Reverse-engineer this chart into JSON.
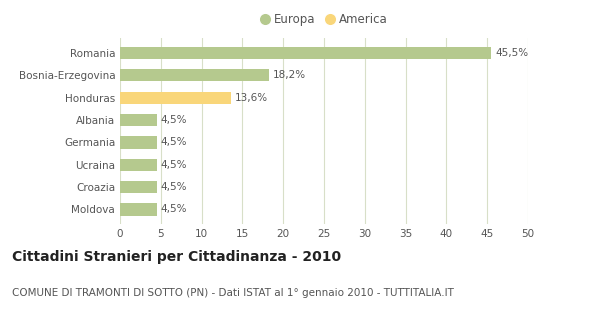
{
  "categories": [
    "Romania",
    "Bosnia-Erzegovina",
    "Honduras",
    "Albania",
    "Germania",
    "Ucraina",
    "Croazia",
    "Moldova"
  ],
  "values": [
    45.5,
    18.2,
    13.6,
    4.5,
    4.5,
    4.5,
    4.5,
    4.5
  ],
  "labels": [
    "45,5%",
    "18,2%",
    "13,6%",
    "4,5%",
    "4,5%",
    "4,5%",
    "4,5%",
    "4,5%"
  ],
  "colors": [
    "#b5c98e",
    "#b5c98e",
    "#f9d67a",
    "#b5c98e",
    "#b5c98e",
    "#b5c98e",
    "#b5c98e",
    "#b5c98e"
  ],
  "europa_color": "#b5c98e",
  "america_color": "#f9d67a",
  "xlim": [
    0,
    50
  ],
  "xticks": [
    0,
    5,
    10,
    15,
    20,
    25,
    30,
    35,
    40,
    45,
    50
  ],
  "title": "Cittadini Stranieri per Cittadinanza - 2010",
  "subtitle": "COMUNE DI TRAMONTI DI SOTTO (PN) - Dati ISTAT al 1° gennaio 2010 - TUTTITALIA.IT",
  "legend_europa": "Europa",
  "legend_america": "America",
  "background_color": "#ffffff",
  "grid_color": "#d8dfc8",
  "bar_height": 0.55,
  "title_fontsize": 10,
  "subtitle_fontsize": 7.5,
  "label_fontsize": 7.5,
  "tick_fontsize": 7.5,
  "legend_fontsize": 8.5,
  "text_color": "#555555",
  "title_color": "#222222"
}
